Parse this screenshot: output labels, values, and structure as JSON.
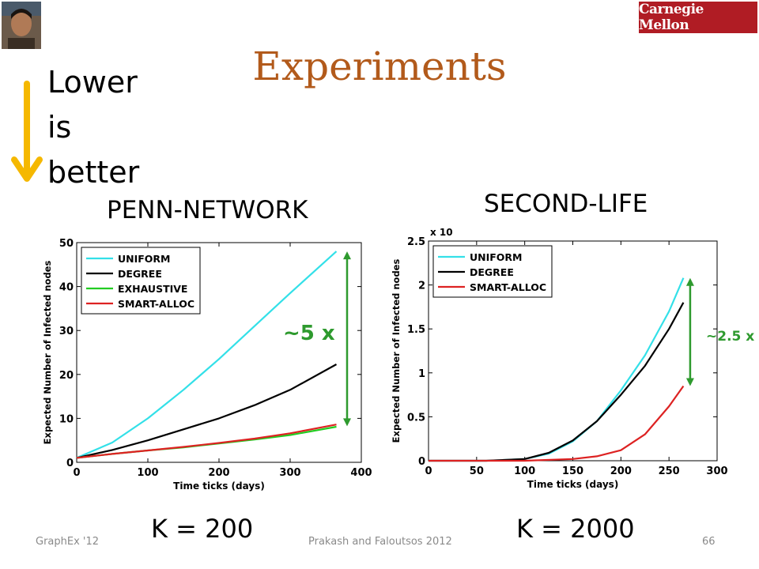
{
  "slide": {
    "title": "Experiments",
    "lower_lines": [
      "Lower",
      "is",
      "better"
    ],
    "logo_text": "Carnegie Mellon",
    "footer_left": "GraphEx '12",
    "footer_center": "Prakash and Faloutsos 2012",
    "page_number": "66",
    "colors": {
      "title": "#b25a1b",
      "arrow": "#f5b800",
      "logo": "#b01c24",
      "annotation": "#2e9a2e"
    }
  },
  "chart_data": [
    {
      "type": "line",
      "label": "PENN-NETWORK",
      "k_label": "K = 200",
      "xlabel": "Time ticks (days)",
      "ylabel": "Expected Number of Infected nodes",
      "xlim": [
        0,
        400
      ],
      "ylim": [
        0,
        50
      ],
      "xticks": [
        0,
        100,
        200,
        300,
        400
      ],
      "yticks": [
        0,
        10,
        20,
        30,
        40,
        50
      ],
      "legend_position": "top-left",
      "annotation": "~5 x",
      "annotation_range": [
        8.2,
        48
      ],
      "series": [
        {
          "name": "UNIFORM",
          "color": "#33e0e8",
          "x": [
            0,
            50,
            100,
            150,
            200,
            250,
            300,
            365
          ],
          "y": [
            1,
            4.5,
            10,
            16.5,
            23.5,
            31,
            38.5,
            48
          ]
        },
        {
          "name": "DEGREE",
          "color": "#000000",
          "x": [
            0,
            50,
            100,
            150,
            200,
            250,
            300,
            365
          ],
          "y": [
            1,
            2.8,
            5,
            7.5,
            10,
            13,
            16.5,
            22.3
          ]
        },
        {
          "name": "EXHAUSTIVE",
          "color": "#22cc22",
          "x": [
            0,
            50,
            100,
            150,
            200,
            250,
            300,
            365
          ],
          "y": [
            1,
            1.9,
            2.7,
            3.4,
            4.3,
            5.2,
            6.2,
            8.1
          ]
        },
        {
          "name": "SMART-ALLOC",
          "color": "#dd2222",
          "x": [
            0,
            50,
            100,
            150,
            200,
            250,
            300,
            365
          ],
          "y": [
            1,
            1.9,
            2.7,
            3.5,
            4.4,
            5.4,
            6.6,
            8.6
          ]
        }
      ]
    },
    {
      "type": "line",
      "label": "SECOND-LIFE",
      "k_label": "K = 2000",
      "xlabel": "Time ticks (days)",
      "ylabel": "Expected Number of Infected nodes",
      "y_multiplier": "x 10",
      "xlim": [
        0,
        300
      ],
      "ylim": [
        0,
        2.5
      ],
      "xticks": [
        0,
        50,
        100,
        150,
        200,
        250,
        300
      ],
      "yticks": [
        0,
        0.5,
        1,
        1.5,
        2,
        2.5
      ],
      "legend_position": "top-left",
      "annotation": "~2.5 x",
      "annotation_range": [
        0.85,
        2.08
      ],
      "series": [
        {
          "name": "UNIFORM",
          "color": "#33e0e8",
          "x": [
            0,
            60,
            100,
            125,
            150,
            175,
            200,
            225,
            250,
            265
          ],
          "y": [
            0,
            0,
            0.02,
            0.08,
            0.22,
            0.45,
            0.8,
            1.2,
            1.7,
            2.08
          ]
        },
        {
          "name": "DEGREE",
          "color": "#000000",
          "x": [
            0,
            60,
            100,
            125,
            150,
            175,
            200,
            225,
            250,
            265
          ],
          "y": [
            0,
            0,
            0.02,
            0.09,
            0.23,
            0.45,
            0.75,
            1.08,
            1.5,
            1.8
          ]
        },
        {
          "name": "SMART-ALLOC",
          "color": "#dd2222",
          "x": [
            0,
            100,
            150,
            175,
            200,
            225,
            250,
            265
          ],
          "y": [
            0,
            0,
            0.02,
            0.05,
            0.12,
            0.3,
            0.62,
            0.85
          ]
        }
      ]
    }
  ]
}
